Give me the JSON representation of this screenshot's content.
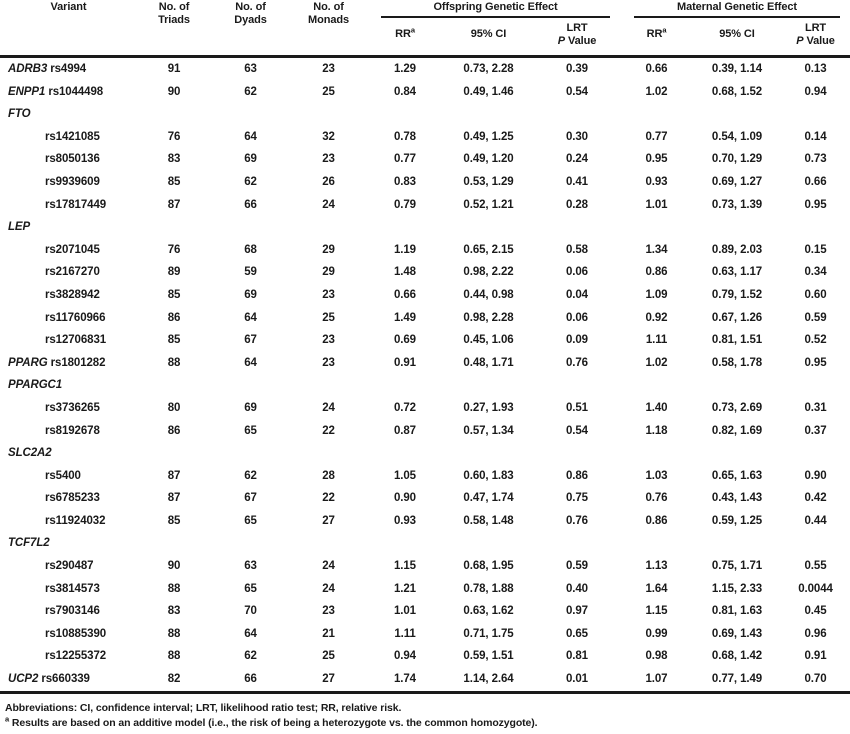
{
  "table": {
    "headers": {
      "variant": "Variant",
      "triads": "No. of Triads",
      "dyads": "No. of Dyads",
      "monads": "No. of Monads",
      "offspring_group": "Offspring Genetic Effect",
      "maternal_group": "Maternal Genetic Effect",
      "rr": "RR",
      "rr_sup": "a",
      "ci": "95% CI",
      "lrt": "LRT",
      "p": "P",
      "value": "Value"
    },
    "rows": [
      {
        "kind": "data",
        "gene": "ADRB3",
        "rsid": "rs4994",
        "indent": false,
        "triads": "91",
        "dyads": "63",
        "monads": "23",
        "o_rr": "1.29",
        "o_ci": "0.73, 2.28",
        "o_p": "0.39",
        "m_rr": "0.66",
        "m_ci": "0.39, 1.14",
        "m_p": "0.13"
      },
      {
        "kind": "data",
        "gene": "ENPP1",
        "rsid": "rs1044498",
        "indent": false,
        "triads": "90",
        "dyads": "62",
        "monads": "25",
        "o_rr": "0.84",
        "o_ci": "0.49, 1.46",
        "o_p": "0.54",
        "m_rr": "1.02",
        "m_ci": "0.68, 1.52",
        "m_p": "0.94"
      },
      {
        "kind": "group",
        "gene": "FTO"
      },
      {
        "kind": "data",
        "gene": "",
        "rsid": "rs1421085",
        "indent": true,
        "triads": "76",
        "dyads": "64",
        "monads": "32",
        "o_rr": "0.78",
        "o_ci": "0.49, 1.25",
        "o_p": "0.30",
        "m_rr": "0.77",
        "m_ci": "0.54, 1.09",
        "m_p": "0.14"
      },
      {
        "kind": "data",
        "gene": "",
        "rsid": "rs8050136",
        "indent": true,
        "triads": "83",
        "dyads": "69",
        "monads": "23",
        "o_rr": "0.77",
        "o_ci": "0.49, 1.20",
        "o_p": "0.24",
        "m_rr": "0.95",
        "m_ci": "0.70, 1.29",
        "m_p": "0.73"
      },
      {
        "kind": "data",
        "gene": "",
        "rsid": "rs9939609",
        "indent": true,
        "triads": "85",
        "dyads": "62",
        "monads": "26",
        "o_rr": "0.83",
        "o_ci": "0.53, 1.29",
        "o_p": "0.41",
        "m_rr": "0.93",
        "m_ci": "0.69, 1.27",
        "m_p": "0.66"
      },
      {
        "kind": "data",
        "gene": "",
        "rsid": "rs17817449",
        "indent": true,
        "triads": "87",
        "dyads": "66",
        "monads": "24",
        "o_rr": "0.79",
        "o_ci": "0.52, 1.21",
        "o_p": "0.28",
        "m_rr": "1.01",
        "m_ci": "0.73, 1.39",
        "m_p": "0.95"
      },
      {
        "kind": "group",
        "gene": "LEP"
      },
      {
        "kind": "data",
        "gene": "",
        "rsid": "rs2071045",
        "indent": true,
        "triads": "76",
        "dyads": "68",
        "monads": "29",
        "o_rr": "1.19",
        "o_ci": "0.65, 2.15",
        "o_p": "0.58",
        "m_rr": "1.34",
        "m_ci": "0.89, 2.03",
        "m_p": "0.15"
      },
      {
        "kind": "data",
        "gene": "",
        "rsid": "rs2167270",
        "indent": true,
        "triads": "89",
        "dyads": "59",
        "monads": "29",
        "o_rr": "1.48",
        "o_ci": "0.98, 2.22",
        "o_p": "0.06",
        "m_rr": "0.86",
        "m_ci": "0.63, 1.17",
        "m_p": "0.34"
      },
      {
        "kind": "data",
        "gene": "",
        "rsid": "rs3828942",
        "indent": true,
        "triads": "85",
        "dyads": "69",
        "monads": "23",
        "o_rr": "0.66",
        "o_ci": "0.44, 0.98",
        "o_p": "0.04",
        "m_rr": "1.09",
        "m_ci": "0.79, 1.52",
        "m_p": "0.60"
      },
      {
        "kind": "data",
        "gene": "",
        "rsid": "rs11760966",
        "indent": true,
        "triads": "86",
        "dyads": "64",
        "monads": "25",
        "o_rr": "1.49",
        "o_ci": "0.98, 2.28",
        "o_p": "0.06",
        "m_rr": "0.92",
        "m_ci": "0.67, 1.26",
        "m_p": "0.59"
      },
      {
        "kind": "data",
        "gene": "",
        "rsid": "rs12706831",
        "indent": true,
        "triads": "85",
        "dyads": "67",
        "monads": "23",
        "o_rr": "0.69",
        "o_ci": "0.45, 1.06",
        "o_p": "0.09",
        "m_rr": "1.11",
        "m_ci": "0.81, 1.51",
        "m_p": "0.52"
      },
      {
        "kind": "data",
        "gene": "PPARG",
        "rsid": "rs1801282",
        "indent": false,
        "triads": "88",
        "dyads": "64",
        "monads": "23",
        "o_rr": "0.91",
        "o_ci": "0.48, 1.71",
        "o_p": "0.76",
        "m_rr": "1.02",
        "m_ci": "0.58, 1.78",
        "m_p": "0.95"
      },
      {
        "kind": "group",
        "gene": "PPARGC1"
      },
      {
        "kind": "data",
        "gene": "",
        "rsid": "rs3736265",
        "indent": true,
        "triads": "80",
        "dyads": "69",
        "monads": "24",
        "o_rr": "0.72",
        "o_ci": "0.27, 1.93",
        "o_p": "0.51",
        "m_rr": "1.40",
        "m_ci": "0.73, 2.69",
        "m_p": "0.31"
      },
      {
        "kind": "data",
        "gene": "",
        "rsid": "rs8192678",
        "indent": true,
        "triads": "86",
        "dyads": "65",
        "monads": "22",
        "o_rr": "0.87",
        "o_ci": "0.57, 1.34",
        "o_p": "0.54",
        "m_rr": "1.18",
        "m_ci": "0.82, 1.69",
        "m_p": "0.37"
      },
      {
        "kind": "group",
        "gene": "SLC2A2"
      },
      {
        "kind": "data",
        "gene": "",
        "rsid": "rs5400",
        "indent": true,
        "triads": "87",
        "dyads": "62",
        "monads": "28",
        "o_rr": "1.05",
        "o_ci": "0.60, 1.83",
        "o_p": "0.86",
        "m_rr": "1.03",
        "m_ci": "0.65, 1.63",
        "m_p": "0.90"
      },
      {
        "kind": "data",
        "gene": "",
        "rsid": "rs6785233",
        "indent": true,
        "triads": "87",
        "dyads": "67",
        "monads": "22",
        "o_rr": "0.90",
        "o_ci": "0.47, 1.74",
        "o_p": "0.75",
        "m_rr": "0.76",
        "m_ci": "0.43, 1.43",
        "m_p": "0.42"
      },
      {
        "kind": "data",
        "gene": "",
        "rsid": "rs11924032",
        "indent": true,
        "triads": "85",
        "dyads": "65",
        "monads": "27",
        "o_rr": "0.93",
        "o_ci": "0.58, 1.48",
        "o_p": "0.76",
        "m_rr": "0.86",
        "m_ci": "0.59, 1.25",
        "m_p": "0.44"
      },
      {
        "kind": "group",
        "gene": "TCF7L2"
      },
      {
        "kind": "data",
        "gene": "",
        "rsid": "rs290487",
        "indent": true,
        "triads": "90",
        "dyads": "63",
        "monads": "24",
        "o_rr": "1.15",
        "o_ci": "0.68, 1.95",
        "o_p": "0.59",
        "m_rr": "1.13",
        "m_ci": "0.75, 1.71",
        "m_p": "0.55"
      },
      {
        "kind": "data",
        "gene": "",
        "rsid": "rs3814573",
        "indent": true,
        "triads": "88",
        "dyads": "65",
        "monads": "24",
        "o_rr": "1.21",
        "o_ci": "0.78, 1.88",
        "o_p": "0.40",
        "m_rr": "1.64",
        "m_ci": "1.15, 2.33",
        "m_p": "0.0044"
      },
      {
        "kind": "data",
        "gene": "",
        "rsid": "rs7903146",
        "indent": true,
        "triads": "83",
        "dyads": "70",
        "monads": "23",
        "o_rr": "1.01",
        "o_ci": "0.63, 1.62",
        "o_p": "0.97",
        "m_rr": "1.15",
        "m_ci": "0.81, 1.63",
        "m_p": "0.45"
      },
      {
        "kind": "data",
        "gene": "",
        "rsid": "rs10885390",
        "indent": true,
        "triads": "88",
        "dyads": "64",
        "monads": "21",
        "o_rr": "1.11",
        "o_ci": "0.71, 1.75",
        "o_p": "0.65",
        "m_rr": "0.99",
        "m_ci": "0.69, 1.43",
        "m_p": "0.96"
      },
      {
        "kind": "data",
        "gene": "",
        "rsid": "rs12255372",
        "indent": true,
        "triads": "88",
        "dyads": "62",
        "monads": "25",
        "o_rr": "0.94",
        "o_ci": "0.59, 1.51",
        "o_p": "0.81",
        "m_rr": "0.98",
        "m_ci": "0.68, 1.42",
        "m_p": "0.91"
      },
      {
        "kind": "data",
        "gene": "UCP2",
        "rsid": "rs660339",
        "indent": false,
        "triads": "82",
        "dyads": "66",
        "monads": "27",
        "o_rr": "1.74",
        "o_ci": "1.14, 2.64",
        "o_p": "0.01",
        "m_rr": "1.07",
        "m_ci": "0.77, 1.49",
        "m_p": "0.70"
      }
    ]
  },
  "footnotes": {
    "abbreviations": "Abbreviations: CI, confidence interval; LRT, likelihood ratio test; RR, relative risk.",
    "a_sup": "a",
    "a_text": "Results are based on an additive model (i.e., the risk of being a heterozygote vs. the common homozygote)."
  }
}
